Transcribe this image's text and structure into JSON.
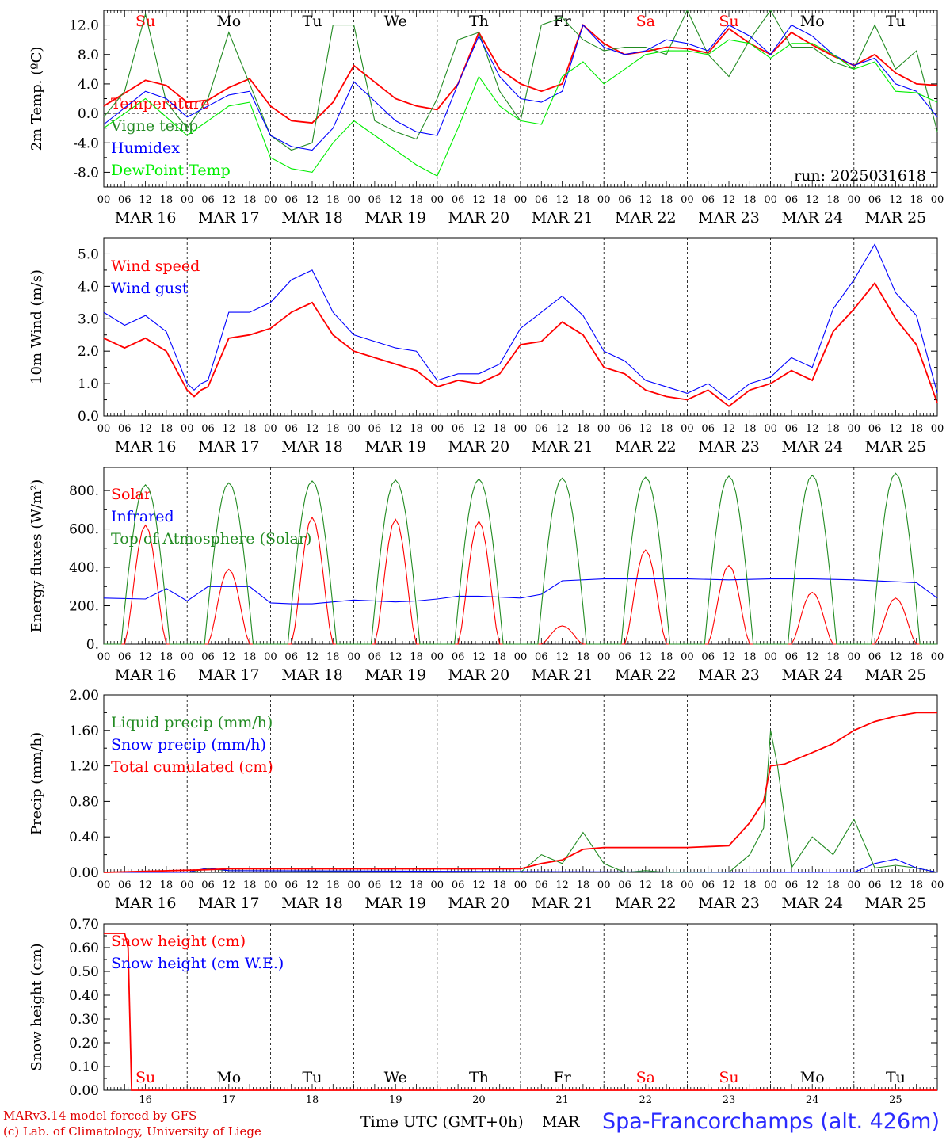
{
  "chart_data": [
    {
      "type": "line",
      "ylabel": "2m Temp. (ºC)",
      "ylim": [
        -10,
        14
      ],
      "yticks": [
        12.0,
        8.0,
        4.0,
        0.0,
        -4.0,
        -8.0
      ],
      "ytick_labels": [
        "12.0",
        "8.0",
        "4.0",
        "0.0",
        "-4.0",
        "-8.0"
      ],
      "annotation": "run: 2025031618",
      "weekdays": [
        "Su",
        "Mo",
        "Tu",
        "We",
        "Th",
        "Fr",
        "Sa",
        "Su",
        "Mo",
        "Tu"
      ],
      "series": [
        {
          "name": "Temperature",
          "color": "#ff0000",
          "x": [
            0,
            12,
            18,
            24,
            30,
            36,
            42,
            48,
            54,
            60,
            66,
            72,
            84,
            90,
            96,
            102,
            108,
            114,
            120,
            126,
            132,
            138,
            144,
            150,
            156,
            162,
            168,
            174,
            180,
            186,
            192,
            198,
            204,
            210,
            216,
            222,
            228,
            234,
            240
          ],
          "values": [
            1,
            4.5,
            3.8,
            1.5,
            1.8,
            3.5,
            4.7,
            1,
            -1,
            -1.3,
            1.5,
            6.5,
            2,
            1,
            0.5,
            4,
            11,
            6,
            4,
            3,
            4,
            12,
            9.5,
            8,
            8.4,
            9,
            8.8,
            8.2,
            11.5,
            9.5,
            8,
            11,
            9.3,
            7.8,
            6.5,
            8,
            5.5,
            4,
            3.8
          ]
        },
        {
          "name": "Vigne temp",
          "color": "#228b22",
          "x": [
            0,
            6,
            12,
            18,
            24,
            30,
            36,
            42,
            48,
            54,
            60,
            66,
            72,
            78,
            84,
            90,
            96,
            102,
            108,
            114,
            120,
            126,
            132,
            138,
            144,
            150,
            156,
            162,
            168,
            174,
            180,
            186,
            192,
            198,
            204,
            210,
            216,
            222,
            228,
            234,
            240
          ],
          "values": [
            -0.5,
            3,
            13.5,
            1.5,
            -2,
            2,
            11,
            4,
            -3,
            -5,
            -4,
            12,
            12,
            -1,
            -2.5,
            -3.5,
            2,
            10,
            11,
            3,
            -1,
            12,
            13,
            10,
            8.5,
            9,
            9,
            8,
            14,
            8,
            5,
            10,
            14,
            9,
            9,
            7,
            6,
            12,
            6,
            8.5,
            -2.5
          ]
        },
        {
          "name": "Humidex",
          "color": "#0000ff",
          "x": [
            0,
            12,
            18,
            24,
            30,
            36,
            42,
            48,
            54,
            60,
            66,
            72,
            84,
            90,
            96,
            102,
            108,
            114,
            120,
            126,
            132,
            138,
            144,
            150,
            156,
            162,
            168,
            174,
            180,
            186,
            192,
            198,
            204,
            210,
            216,
            222,
            228,
            234,
            240
          ],
          "values": [
            -1.5,
            3,
            2,
            -0.5,
            1,
            2.5,
            3,
            -3,
            -4.5,
            -5,
            -2,
            4.3,
            -1,
            -2.5,
            -3,
            4,
            10.5,
            5,
            2,
            1.5,
            3,
            12,
            9,
            8,
            8.5,
            10,
            9.5,
            8.5,
            12,
            10.5,
            8,
            12,
            10.5,
            8,
            6.5,
            7.5,
            4,
            3,
            -0.5
          ]
        },
        {
          "name": "DewPoint Temp",
          "color": "#00ee00",
          "x": [
            0,
            12,
            18,
            24,
            30,
            36,
            42,
            48,
            54,
            60,
            66,
            72,
            84,
            90,
            96,
            102,
            108,
            114,
            120,
            126,
            132,
            138,
            144,
            150,
            156,
            162,
            168,
            174,
            180,
            186,
            192,
            198,
            204,
            210,
            216,
            222,
            228,
            234,
            240
          ],
          "values": [
            -2,
            2,
            -0.5,
            -3,
            -1,
            1,
            1.5,
            -6,
            -7.5,
            -8,
            -4,
            -1,
            -5,
            -7,
            -8.5,
            -2,
            5,
            1,
            -1,
            -1.5,
            5,
            7,
            4,
            6,
            8,
            8.5,
            8.5,
            8,
            10,
            9.5,
            7.5,
            9.5,
            9.5,
            8,
            6,
            7,
            3,
            2.8,
            1.5
          ]
        }
      ]
    },
    {
      "type": "line",
      "ylabel": "10m Wind (m/s)",
      "ylim": [
        0,
        5.5
      ],
      "yticks": [
        5.0,
        4.0,
        3.0,
        2.0,
        1.0,
        0.0
      ],
      "ytick_labels": [
        "5.0",
        "4.0",
        "3.0",
        "2.0",
        "1.0",
        "0.0"
      ],
      "series": [
        {
          "name": "Wind speed",
          "color": "#ff0000",
          "x": [
            0,
            6,
            12,
            18,
            24,
            26,
            28,
            30,
            36,
            42,
            48,
            54,
            60,
            66,
            72,
            78,
            84,
            90,
            96,
            102,
            108,
            114,
            120,
            126,
            132,
            138,
            144,
            150,
            156,
            162,
            168,
            174,
            180,
            186,
            192,
            198,
            204,
            210,
            216,
            222,
            228,
            234,
            240
          ],
          "values": [
            2.4,
            2.1,
            2.4,
            2,
            0.8,
            0.6,
            0.8,
            0.9,
            2.4,
            2.5,
            2.7,
            3.2,
            3.5,
            2.5,
            2,
            1.8,
            1.6,
            1.4,
            0.9,
            1.1,
            1,
            1.3,
            2.2,
            2.3,
            2.9,
            2.5,
            1.5,
            1.3,
            0.8,
            0.6,
            0.5,
            0.8,
            0.3,
            0.8,
            1,
            1.4,
            1.1,
            2.6,
            3.3,
            4.1,
            3,
            2.2,
            0.4
          ]
        },
        {
          "name": "Wind gust",
          "color": "#0000ff",
          "x": [
            0,
            6,
            12,
            18,
            24,
            26,
            28,
            30,
            36,
            42,
            48,
            54,
            60,
            66,
            72,
            78,
            84,
            90,
            96,
            102,
            108,
            114,
            120,
            126,
            132,
            138,
            144,
            150,
            156,
            162,
            168,
            174,
            180,
            186,
            192,
            198,
            204,
            210,
            216,
            222,
            228,
            234,
            240
          ],
          "values": [
            3.2,
            2.8,
            3.1,
            2.6,
            1,
            0.8,
            1,
            1.1,
            3.2,
            3.2,
            3.5,
            4.2,
            4.5,
            3.2,
            2.5,
            2.3,
            2.1,
            2,
            1.1,
            1.3,
            1.3,
            1.6,
            2.7,
            3.2,
            3.7,
            3.1,
            2,
            1.7,
            1.1,
            0.9,
            0.7,
            1,
            0.5,
            1,
            1.2,
            1.8,
            1.5,
            3.3,
            4.2,
            5.3,
            3.8,
            3.1,
            0.7
          ]
        }
      ]
    },
    {
      "type": "line",
      "ylabel": "Energy fluxes (W/m²)",
      "ylim": [
        0,
        920
      ],
      "yticks": [
        800,
        600,
        400,
        200,
        0
      ],
      "ytick_labels": [
        "800.",
        "600.",
        "400.",
        "200.",
        "0."
      ],
      "series": [
        {
          "name": "Solar",
          "color": "#ff0000",
          "daily_peaks": [
            620,
            390,
            660,
            650,
            640,
            95,
            490,
            410,
            270,
            240
          ]
        },
        {
          "name": "Infrared",
          "color": "#0000ff",
          "x": [
            0,
            12,
            18,
            24,
            30,
            36,
            42,
            48,
            54,
            60,
            66,
            72,
            84,
            90,
            96,
            102,
            108,
            114,
            120,
            126,
            132,
            144,
            156,
            168,
            180,
            192,
            204,
            216,
            228,
            234,
            240
          ],
          "values": [
            240,
            235,
            290,
            225,
            300,
            300,
            300,
            215,
            210,
            210,
            220,
            230,
            220,
            225,
            235,
            250,
            250,
            245,
            240,
            260,
            330,
            340,
            340,
            340,
            335,
            340,
            340,
            335,
            325,
            320,
            240
          ]
        },
        {
          "name": "Top of Atmosphere (Solar)",
          "color": "#228b22",
          "daily_peaks": [
            830,
            840,
            850,
            855,
            860,
            865,
            870,
            875,
            880,
            890
          ]
        }
      ]
    },
    {
      "type": "line",
      "ylabel": "Precip (mm/h)",
      "ylim": [
        0,
        2.0
      ],
      "yticks": [
        2.0,
        1.6,
        1.2,
        0.8,
        0.4,
        0.0
      ],
      "ytick_labels": [
        "2.00",
        "1.60",
        "1.20",
        "0.80",
        "0.40",
        "0.00"
      ],
      "series": [
        {
          "name": "Liquid precip (mm/h)",
          "color": "#228b22",
          "x": [
            0,
            24,
            30,
            36,
            120,
            126,
            132,
            138,
            144,
            150,
            156,
            162,
            168,
            174,
            180,
            186,
            190,
            192,
            194,
            198,
            204,
            210,
            216,
            222,
            228,
            234,
            240
          ],
          "values": [
            0,
            0,
            0.04,
            0.02,
            0,
            0.2,
            0.1,
            0.45,
            0.1,
            0,
            0.02,
            0,
            0,
            0,
            0,
            0.2,
            0.5,
            1.6,
            1.2,
            0.05,
            0.4,
            0.2,
            0.6,
            0.05,
            0.08,
            0.05,
            0
          ]
        },
        {
          "name": "Snow precip (mm/h)",
          "color": "#0000ff",
          "x": [
            0,
            24,
            30,
            36,
            198,
            210,
            216,
            222,
            228,
            234,
            240
          ],
          "values": [
            0,
            0,
            0.05,
            0.02,
            0,
            0,
            0,
            0.1,
            0.15,
            0.05,
            0
          ]
        },
        {
          "name": "Total cumulated (cm)",
          "color": "#ff0000",
          "x": [
            0,
            30,
            36,
            120,
            126,
            132,
            138,
            144,
            168,
            180,
            186,
            190,
            192,
            196,
            204,
            210,
            216,
            222,
            228,
            234,
            240
          ],
          "values": [
            0,
            0.03,
            0.04,
            0.04,
            0.1,
            0.14,
            0.26,
            0.28,
            0.28,
            0.3,
            0.56,
            0.8,
            1.2,
            1.22,
            1.35,
            1.45,
            1.6,
            1.7,
            1.76,
            1.8,
            1.8
          ]
        }
      ]
    },
    {
      "type": "line",
      "ylabel": "Snow height (cm)",
      "ylim": [
        0,
        0.7
      ],
      "yticks": [
        0.7,
        0.6,
        0.5,
        0.4,
        0.3,
        0.2,
        0.1,
        0.0
      ],
      "ytick_labels": [
        "0.70",
        "0.60",
        "0.50",
        "0.40",
        "0.30",
        "0.20",
        "0.10",
        "0.00"
      ],
      "weekdays": [
        "Su",
        "Mo",
        "Tu",
        "We",
        "Th",
        "Fr",
        "Sa",
        "Su",
        "Mo",
        "Tu"
      ],
      "day_numbers": [
        "16",
        "17",
        "18",
        "19",
        "20",
        "21",
        "22",
        "23",
        "24",
        "25"
      ],
      "series": [
        {
          "name": "Snow height (cm)",
          "color": "#ff0000",
          "x": [
            0,
            6,
            7,
            8,
            240
          ],
          "values": [
            0.66,
            0.66,
            0.6,
            0,
            0
          ]
        },
        {
          "name": "Snow height (cm W.E.)",
          "color": "#0000ff",
          "x": [],
          "values": []
        }
      ]
    }
  ],
  "x_axis": {
    "hour_labels": [
      "00",
      "06",
      "12",
      "18"
    ],
    "end_label": "00",
    "date_labels": [
      "MAR 16",
      "MAR 17",
      "MAR 18",
      "MAR 19",
      "MAR 20",
      "MAR 21",
      "MAR 22",
      "MAR 23",
      "MAR 24",
      "MAR 25"
    ],
    "weekend_color": "#ff0000",
    "weekday_color": "#000000"
  },
  "footer": {
    "model_line": "MARv3.14 model forced by GFS",
    "credit_line": "(c) Lab. of Climatology, University of Liege",
    "xaxis_title": "Time UTC (GMT+0h)",
    "xaxis_month": "MAR",
    "station": "Spa-Francorchamps (alt. 426m)"
  }
}
